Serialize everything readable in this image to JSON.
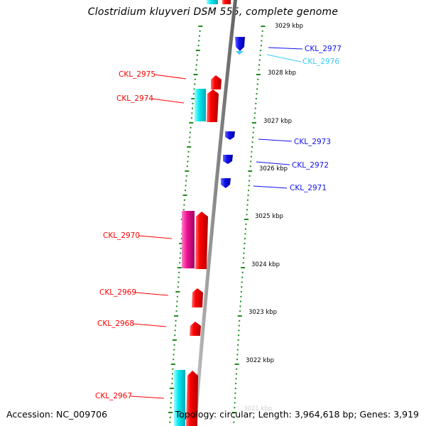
{
  "title": "Clostridium kluyveri DSM 555, complete genome",
  "accession": "Accession: NC_009706",
  "topology": "Topology: circular; Length: 3,964,618 bp; Genes: 3,919",
  "colors": {
    "forward_cds": "#ff0000",
    "reverse_cds": "#1010ee",
    "forward_rna": "#22eeee",
    "reverse_rna": "#33ccff",
    "pseudo": "#ee1493",
    "backbone": "#909090",
    "ticks": "#1a8a1a"
  },
  "kbp_ticks": [
    "3029 kbp",
    "3028 kbp",
    "3027 kbp",
    "3026 kbp",
    "3025 kbp",
    "3024 kbp",
    "3023 kbp",
    "3022 kbp",
    "3021 kbp"
  ],
  "genes": [
    {
      "label": "CKL_2977",
      "color": "#1010ee"
    },
    {
      "label": "CKL_2976",
      "color": "#33ccff"
    },
    {
      "label": "CKL_2975",
      "color": "#ff0000"
    },
    {
      "label": "CKL_2974",
      "color": "#ff0000"
    },
    {
      "label": "CKL_2973",
      "color": "#1010ee"
    },
    {
      "label": "CKL_2972",
      "color": "#1010ee"
    },
    {
      "label": "CKL_2971",
      "color": "#1010ee"
    },
    {
      "label": "CKL_2970",
      "color": "#ff0000"
    },
    {
      "label": "CKL_2969",
      "color": "#ff0000"
    },
    {
      "label": "CKL_2968",
      "color": "#ff0000"
    },
    {
      "label": "CKL_2967",
      "color": "#ff0000"
    }
  ]
}
